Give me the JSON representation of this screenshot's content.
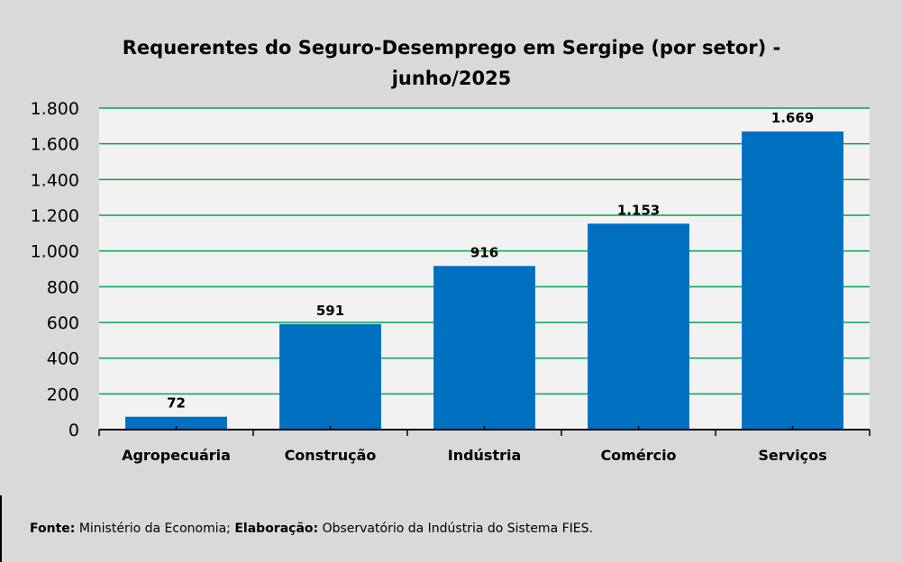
{
  "chart_data": {
    "type": "bar",
    "title_line1": "Requerentes do Seguro-Desemprego em Sergipe (por setor) -",
    "title_line2": "junho/2025",
    "categories": [
      "Agropecuária",
      "Construção",
      "Indústria",
      "Comércio",
      "Serviços"
    ],
    "values": [
      72,
      591,
      916,
      1153,
      1669
    ],
    "data_labels": [
      "72",
      "591",
      "916",
      "1.153",
      "1.669"
    ],
    "ylim": [
      0,
      1800
    ],
    "yticks": [
      0,
      200,
      400,
      600,
      800,
      1000,
      1200,
      1400,
      1600,
      1800
    ],
    "ytick_labels": [
      "0",
      "200",
      "400",
      "600",
      "800",
      "1.000",
      "1.200",
      "1.400",
      "1.600",
      "1.800"
    ],
    "grid": true,
    "colors": {
      "bar": "#0070c0",
      "grid": "#00a650",
      "plot_bg": "#f2f2f2",
      "bg": "#d9d9d9"
    }
  },
  "footer": {
    "source_label": "Fonte:",
    "source_text": " Ministério da Economia; ",
    "elab_label": "Elaboração:",
    "elab_text": " Observatório da Indústria do Sistema FIES."
  }
}
